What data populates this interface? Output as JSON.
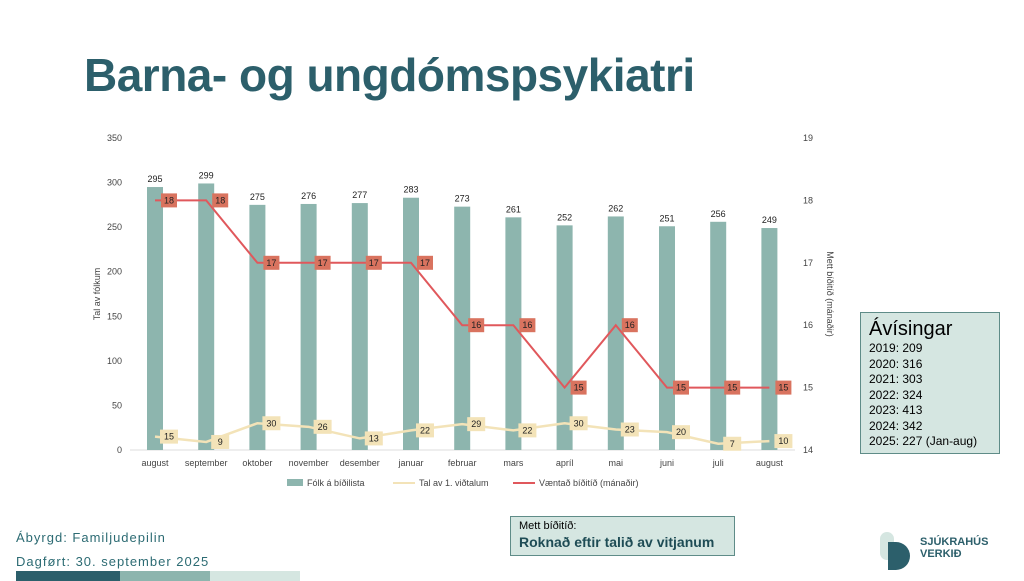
{
  "title": "Barna- og ungdómspsykiatri",
  "chart_data": {
    "type": "bar+line",
    "categories": [
      "august",
      "september",
      "oktober",
      "november",
      "desember",
      "januar",
      "februar",
      "mars",
      "apríl",
      "mai",
      "juni",
      "juli",
      "august"
    ],
    "series": [
      {
        "name": "Fólk á bíðilista",
        "type": "bar",
        "axis": "left",
        "color": "#8db5ae",
        "values": [
          295,
          299,
          275,
          276,
          277,
          283,
          273,
          261,
          252,
          262,
          251,
          256,
          249
        ]
      },
      {
        "name": "Tal av 1. viðtalum",
        "type": "line",
        "axis": "left",
        "color": "#f3e3b8",
        "values": [
          15,
          9,
          30,
          26,
          13,
          22,
          29,
          22,
          30,
          23,
          20,
          7,
          10
        ]
      },
      {
        "name": "Væntað bíðitíð (mánaðir)",
        "type": "line",
        "axis": "right",
        "color": "#e0585c",
        "label_color": "#d9735f",
        "values": [
          18,
          18,
          17,
          17,
          17,
          17,
          16,
          16,
          15,
          16,
          15,
          15,
          15
        ]
      }
    ],
    "ylabel": "Tal av fólkum",
    "ylabel_right": "Mett bíðitíð (mánaðir)",
    "ylim": [
      0,
      350
    ],
    "yticks": [
      0,
      50,
      100,
      150,
      200,
      250,
      300,
      350
    ],
    "ylim_right": [
      14,
      19
    ],
    "yticks_right": [
      14,
      15,
      16,
      17,
      18,
      19
    ],
    "legend": "bottom",
    "grid": false
  },
  "avisingar": {
    "title": "Ávísingar",
    "lines": [
      "2019: 209",
      "2020: 316",
      "2021: 303",
      "2022: 324",
      "2023: 413",
      "2024: 342",
      "2025: 227 (Jan-aug)"
    ]
  },
  "footer": {
    "responsible": "Ábyrgd: Familjudepilin",
    "updated": "Dagført: 30. september 2025",
    "note_label": "Mett bíðitíð:",
    "note_text": "Roknað eftir talið av vitjanum",
    "logo_text": [
      "SJÚKRAHÚS",
      "VERKIÐ"
    ],
    "strip_colors": [
      "#2c5f6b",
      "#8db5ae",
      "#d5e6e1"
    ]
  }
}
